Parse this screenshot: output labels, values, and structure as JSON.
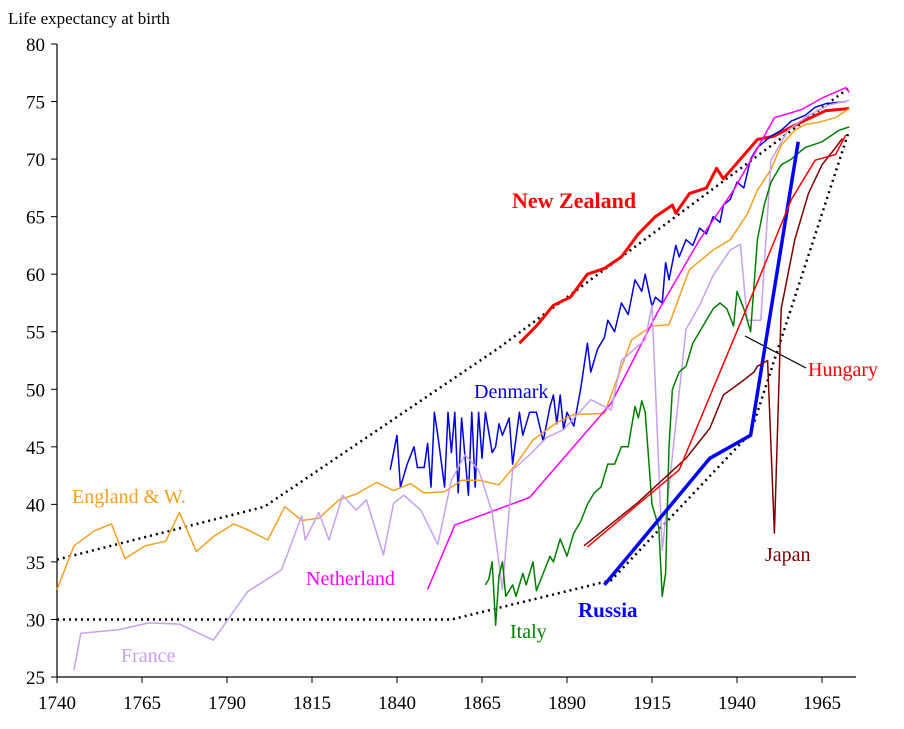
{
  "chart_data": {
    "type": "line",
    "y_label": "Life expectancy at birth",
    "xlim": [
      1740,
      1975
    ],
    "ylim": [
      25,
      80
    ],
    "xticks": [
      1740,
      1765,
      1790,
      1815,
      1840,
      1865,
      1890,
      1915,
      1940,
      1965
    ],
    "yticks": [
      25,
      30,
      35,
      40,
      45,
      50,
      55,
      60,
      65,
      70,
      75,
      80
    ],
    "series": [
      {
        "name": "New Zealand",
        "color": "#ff0000",
        "line_width": 3,
        "x": [
          1876,
          1881,
          1886,
          1891,
          1896,
          1901,
          1906,
          1911,
          1916,
          1921,
          1922,
          1926,
          1931,
          1934,
          1936,
          1941,
          1946,
          1951,
          1956,
          1961,
          1966,
          1973
        ],
        "values": [
          54,
          55.5,
          57.3,
          58,
          60,
          60.5,
          61.5,
          63.5,
          65,
          66,
          65.3,
          67,
          67.5,
          69.2,
          68.3,
          70,
          71.7,
          72,
          72.8,
          73.5,
          74.2,
          74.4
        ]
      },
      {
        "name": "Denmark",
        "color": "#0000e0",
        "line_width": 1.5,
        "x": [
          1838,
          1840,
          1841,
          1843,
          1845,
          1846,
          1848,
          1849,
          1850,
          1851,
          1852,
          1854,
          1855,
          1856,
          1857,
          1858,
          1859,
          1861,
          1862,
          1863,
          1864,
          1865,
          1866,
          1868,
          1869,
          1870,
          1871,
          1873,
          1874,
          1876,
          1877,
          1879,
          1881,
          1883,
          1885,
          1886,
          1887,
          1888,
          1889,
          1890,
          1892,
          1894,
          1896,
          1897,
          1899,
          1901,
          1902,
          1904,
          1906,
          1908,
          1910,
          1912,
          1913,
          1915,
          1916,
          1918,
          1919,
          1920,
          1922,
          1923,
          1925,
          1927,
          1929,
          1931,
          1933,
          1935,
          1936,
          1938,
          1940,
          1942,
          1944,
          1946,
          1948,
          1950,
          1953,
          1956,
          1960,
          1963,
          1966,
          1972
        ],
        "values": [
          43,
          46,
          41.5,
          43.5,
          45,
          43.2,
          43.2,
          45.3,
          41.5,
          48,
          46,
          41.5,
          48,
          44.5,
          48,
          41,
          47.5,
          40.8,
          48,
          41.5,
          48,
          44,
          48,
          44.5,
          45,
          47,
          46,
          47.5,
          43.5,
          48,
          46,
          48,
          48,
          45.5,
          48.5,
          49.5,
          47,
          49.5,
          46.5,
          48,
          46.8,
          50,
          54,
          51.5,
          53.5,
          54.5,
          56,
          55,
          57.5,
          56.5,
          59.5,
          58.5,
          60,
          57.2,
          58,
          57.5,
          61,
          59.5,
          62.5,
          61.5,
          63,
          62.5,
          64,
          63.5,
          65,
          64.5,
          66,
          66.5,
          68,
          67.5,
          70,
          71,
          71.5,
          72,
          72.5,
          73.3,
          73.8,
          74.5,
          74.8,
          75
        ]
      },
      {
        "name": "England & W.",
        "color": "#f5a020",
        "line_width": 1.5,
        "x": [
          1740,
          1745,
          1751,
          1756,
          1760,
          1766,
          1772,
          1776,
          1781,
          1786,
          1792,
          1796,
          1802,
          1807,
          1812,
          1817,
          1823,
          1828,
          1834,
          1839,
          1844,
          1848,
          1854,
          1859,
          1864,
          1870,
          1875,
          1880,
          1887,
          1892,
          1901,
          1909,
          1915,
          1920,
          1926,
          1933,
          1938,
          1943,
          1946,
          1950,
          1953,
          1957,
          1960,
          1964,
          1969,
          1973
        ],
        "values": [
          32.6,
          36.4,
          37.7,
          38.3,
          35.3,
          36.4,
          36.8,
          39.3,
          35.9,
          37.2,
          38.3,
          37.8,
          36.9,
          39.8,
          38.6,
          38.8,
          40.4,
          40.9,
          41.9,
          41.2,
          41.8,
          41,
          41.1,
          42.1,
          42.1,
          41.7,
          43.5,
          45.6,
          47.1,
          47.8,
          47.9,
          54.3,
          55.5,
          55.6,
          60.4,
          62.1,
          63,
          65.2,
          67.3,
          69.1,
          71.2,
          72.5,
          73,
          73.2,
          73.6,
          74.4
        ]
      },
      {
        "name": "Netherland",
        "color": "#ff00ff",
        "line_width": 1.5,
        "x": [
          1849,
          1857,
          1879,
          1903,
          1917,
          1929,
          1939,
          1945,
          1951,
          1959,
          1965,
          1972,
          1973
        ],
        "values": [
          32.6,
          38.2,
          40.6,
          48.8,
          56.9,
          63,
          67.3,
          70.4,
          73.6,
          74.3,
          75.3,
          76.2,
          75.8
        ]
      },
      {
        "name": "France",
        "color": "#c8a0f0",
        "line_width": 1.5,
        "x": [
          1745,
          1747,
          1758,
          1767,
          1776,
          1786,
          1796,
          1806,
          1812,
          1813,
          1817,
          1820,
          1824,
          1828,
          1831,
          1836,
          1839,
          1842,
          1847,
          1852,
          1856,
          1860,
          1864,
          1868,
          1871,
          1874,
          1879,
          1884,
          1889,
          1897,
          1903,
          1906,
          1913,
          1915,
          1918,
          1925,
          1929,
          1933,
          1938,
          1941,
          1943,
          1947,
          1950,
          1955,
          1961,
          1967,
          1973
        ],
        "values": [
          25.6,
          28.8,
          29.1,
          29.7,
          29.6,
          28.2,
          32.4,
          34.3,
          39,
          36.9,
          39.3,
          36.9,
          40.8,
          39.5,
          40.4,
          35.6,
          40.1,
          40.8,
          39.5,
          36.5,
          42.1,
          44.3,
          43,
          39.3,
          32.6,
          43,
          44.3,
          45.8,
          46.5,
          49.1,
          48.2,
          52.5,
          54.3,
          57.3,
          36,
          55.2,
          57.3,
          59.9,
          62.1,
          62.6,
          56,
          56,
          69.9,
          72.5,
          73.8,
          74.7,
          75.1
        ]
      },
      {
        "name": "Italy",
        "color": "#008000",
        "line_width": 1.5,
        "x": [
          1866,
          1867,
          1868,
          1869,
          1870,
          1871,
          1872,
          1874,
          1875,
          1877,
          1878,
          1880,
          1881,
          1883,
          1885,
          1886,
          1888,
          1890,
          1892,
          1894,
          1896,
          1898,
          1900,
          1902,
          1904,
          1906,
          1908,
          1910,
          1911,
          1912,
          1913,
          1915,
          1917,
          1918,
          1919,
          1920,
          1921,
          1923,
          1925,
          1927,
          1929,
          1931,
          1933,
          1935,
          1937,
          1939,
          1940,
          1942,
          1944,
          1946,
          1948,
          1950,
          1953,
          1956,
          1960,
          1965,
          1970,
          1973
        ],
        "values": [
          33,
          33.5,
          35,
          29.5,
          33.8,
          35,
          32,
          33,
          32,
          34,
          33,
          35,
          32.5,
          34,
          35.5,
          35,
          37,
          35.5,
          37.5,
          38.5,
          40,
          41,
          41.5,
          43.5,
          43.5,
          45,
          45,
          48.5,
          47.5,
          49,
          48,
          40,
          38,
          32,
          34,
          45,
          50,
          51.5,
          52,
          54,
          55,
          56,
          57,
          57.5,
          57,
          55.5,
          58.5,
          57,
          55,
          63,
          66,
          68,
          69.5,
          70,
          71,
          71.5,
          72.5,
          72.8
        ]
      },
      {
        "name": "Russia",
        "color": "#0000ff",
        "line_width": 3.5,
        "x": [
          1901,
          1932,
          1944,
          1958
        ],
        "values": [
          33,
          44,
          46,
          71.5
        ]
      },
      {
        "name": "Japan",
        "color": "#800000",
        "line_width": 1.5,
        "x": [
          1895,
          1911,
          1925,
          1932,
          1936,
          1942,
          1945,
          1946,
          1949,
          1951,
          1953,
          1957,
          1961,
          1965,
          1969,
          1971
        ],
        "values": [
          36.4,
          40.2,
          44,
          46.6,
          49.5,
          50.8,
          51.5,
          52,
          52.5,
          37.5,
          57,
          63,
          67,
          69.5,
          71,
          71.8
        ]
      },
      {
        "name": "Hungary",
        "color": "#ff0000",
        "line_width": 1.5,
        "x": [
          1896,
          1923,
          1934,
          1947,
          1956,
          1963,
          1969,
          1972
        ],
        "values": [
          36.3,
          43,
          50.8,
          60,
          66.5,
          69.9,
          70.4,
          72.1
        ]
      },
      {
        "color": "#000000",
        "line_width": 2.5,
        "dash": true,
        "x": [
          1740,
          1801,
          1870,
          1973
        ],
        "values": [
          35.2,
          39.8,
          53.6,
          76.2
        ]
      },
      {
        "color": "#000000",
        "line_width": 2.5,
        "dash": true,
        "x": [
          1740,
          1856,
          1903,
          1944,
          1973
        ],
        "values": [
          30,
          30,
          33.4,
          46.2,
          72.5
        ]
      }
    ]
  }
}
